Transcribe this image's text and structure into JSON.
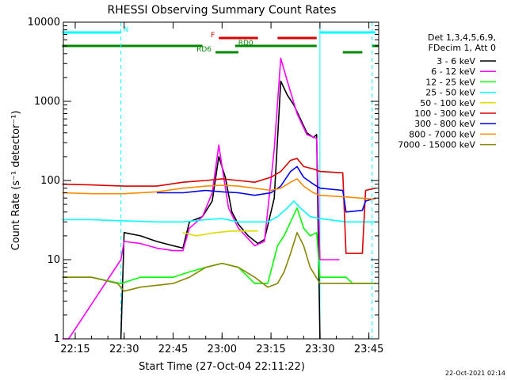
{
  "title": "RHESSI Observing Summary Count Rates",
  "xlabel": "Start Time (27-Oct-04 22:11:22)",
  "ylabel": "Count Rate (s⁻¹ detector⁻¹)",
  "footer_date": "22-Oct-2021 02:14",
  "legend": {
    "header_line1": "Det 1,3,4,5,6,9,",
    "header_line2": "FDecim 1, Att 0",
    "entries": [
      {
        "label": "3 - 6 keV",
        "color": "#000000"
      },
      {
        "label": "6 - 12 keV",
        "color": "#ff00ff"
      },
      {
        "label": "12 - 25 keV",
        "color": "#00ff00"
      },
      {
        "label": "25 - 50 keV",
        "color": "#00ffff"
      },
      {
        "label": "50 - 100 keV",
        "color": "#dddd00"
      },
      {
        "label": "100 - 300 keV",
        "color": "#dd0000"
      },
      {
        "label": "300 - 800 keV",
        "color": "#0000ee"
      },
      {
        "label": "800 - 7000 keV",
        "color": "#ff8800"
      },
      {
        "label": "7000 - 15000 keV",
        "color": "#888800"
      }
    ]
  },
  "flags": [
    {
      "label": "N",
      "color": "#00ffff"
    },
    {
      "label": "F",
      "color": "#dd0000"
    },
    {
      "label": "RD0",
      "color": "#008800"
    },
    {
      "label": "RD6",
      "color": "#008800"
    }
  ],
  "chart_data": {
    "type": "line",
    "yscale": "log",
    "ylim": [
      1,
      10000
    ],
    "xlim": [
      "22:11:22",
      "23:48:00"
    ],
    "x_tick_labels": [
      "22:15",
      "22:30",
      "22:45",
      "23:00",
      "23:15",
      "23:30",
      "23:45"
    ],
    "y_tick_labels": [
      "1",
      "10",
      "100",
      "1000",
      "10000"
    ],
    "flag_bars": [
      {
        "name": "N",
        "color": "#00ffff",
        "segments": [
          [
            "22:11",
            "22:29"
          ],
          [
            "23:30",
            "23:47"
          ]
        ]
      },
      {
        "name": "F",
        "color": "#dd0000",
        "segments": [
          [
            "22:59",
            "23:11"
          ],
          [
            "23:17",
            "23:29"
          ]
        ]
      },
      {
        "name": "RD0",
        "color": "#008800",
        "segments": [
          [
            "22:11",
            "22:54"
          ],
          [
            "23:04",
            "23:29"
          ],
          [
            "23:46",
            "23:48"
          ]
        ]
      },
      {
        "name": "RD6",
        "color": "#008800",
        "segments": [
          [
            "22:58",
            "23:05"
          ],
          [
            "23:37",
            "23:43"
          ]
        ]
      }
    ],
    "vertical_markers": [
      {
        "time": "22:29",
        "color": "#00ffff",
        "style": "dashed"
      },
      {
        "time": "23:30",
        "color": "#00ffff",
        "style": "solid"
      },
      {
        "time": "23:46",
        "color": "#00ffff",
        "style": "dashed"
      }
    ],
    "series": [
      {
        "name": "3 - 6 keV",
        "color": "#000000",
        "points": [
          [
            "22:29",
            1
          ],
          [
            "22:30",
            22
          ],
          [
            "22:35",
            20
          ],
          [
            "22:40",
            17
          ],
          [
            "22:45",
            15
          ],
          [
            "22:48",
            14
          ],
          [
            "22:50",
            30
          ],
          [
            "22:54",
            35
          ],
          [
            "22:57",
            55
          ],
          [
            "22:59",
            200
          ],
          [
            "23:01",
            110
          ],
          [
            "23:03",
            40
          ],
          [
            "23:05",
            28
          ],
          [
            "23:08",
            20
          ],
          [
            "23:11",
            16
          ],
          [
            "23:13",
            18
          ],
          [
            "23:16",
            60
          ],
          [
            "23:18",
            1800
          ],
          [
            "23:20",
            1200
          ],
          [
            "23:22",
            900
          ],
          [
            "23:24",
            600
          ],
          [
            "23:26",
            400
          ],
          [
            "23:28",
            350
          ],
          [
            "23:29",
            380
          ],
          [
            "23:30",
            1
          ]
        ]
      },
      {
        "name": "6 - 12 keV",
        "color": "#ff00ff",
        "points": [
          [
            "22:11",
            1
          ],
          [
            "22:13",
            1
          ],
          [
            "22:29",
            10
          ],
          [
            "22:30",
            17
          ],
          [
            "22:35",
            16
          ],
          [
            "22:40",
            14
          ],
          [
            "22:45",
            13
          ],
          [
            "22:48",
            13
          ],
          [
            "22:50",
            25
          ],
          [
            "22:54",
            35
          ],
          [
            "22:57",
            70
          ],
          [
            "22:59",
            280
          ],
          [
            "23:00",
            150
          ],
          [
            "23:02",
            45
          ],
          [
            "23:05",
            25
          ],
          [
            "23:10",
            15
          ],
          [
            "23:13",
            17
          ],
          [
            "23:16",
            250
          ],
          [
            "23:18",
            3500
          ],
          [
            "23:20",
            1800
          ],
          [
            "23:23",
            700
          ],
          [
            "23:26",
            380
          ],
          [
            "23:29",
            340
          ],
          [
            "23:30",
            10
          ],
          [
            "23:36",
            10
          ]
        ]
      },
      {
        "name": "12 - 25 keV",
        "color": "#00ff00",
        "points": [
          [
            "22:11",
            6
          ],
          [
            "22:20",
            6
          ],
          [
            "22:29",
            5
          ],
          [
            "22:35",
            6
          ],
          [
            "22:45",
            6
          ],
          [
            "22:50",
            7
          ],
          [
            "22:55",
            8
          ],
          [
            "23:00",
            9
          ],
          [
            "23:05",
            8
          ],
          [
            "23:10",
            5
          ],
          [
            "23:14",
            5
          ],
          [
            "23:17",
            15
          ],
          [
            "23:19",
            20
          ],
          [
            "23:21",
            30
          ],
          [
            "23:23",
            45
          ],
          [
            "23:25",
            25
          ],
          [
            "23:27",
            20
          ],
          [
            "23:29",
            22
          ],
          [
            "23:30",
            6
          ],
          [
            "23:38",
            6
          ],
          [
            "23:40",
            5
          ],
          [
            "23:47",
            5
          ]
        ]
      },
      {
        "name": "25 - 50 keV",
        "color": "#00ffff",
        "points": [
          [
            "22:11",
            32
          ],
          [
            "22:20",
            32
          ],
          [
            "22:30",
            31
          ],
          [
            "22:40",
            30
          ],
          [
            "22:48",
            30
          ],
          [
            "22:55",
            32
          ],
          [
            "23:00",
            33
          ],
          [
            "23:05",
            30
          ],
          [
            "23:10",
            30
          ],
          [
            "23:14",
            30
          ],
          [
            "23:17",
            35
          ],
          [
            "23:20",
            45
          ],
          [
            "23:22",
            55
          ],
          [
            "23:24",
            45
          ],
          [
            "23:27",
            35
          ],
          [
            "23:30",
            33
          ],
          [
            "23:38",
            30
          ],
          [
            "23:47",
            30
          ]
        ]
      },
      {
        "name": "50 - 100 keV",
        "color": "#dddd00",
        "points": [
          [
            "22:48",
            22
          ],
          [
            "22:52",
            20
          ],
          [
            "22:58",
            22
          ],
          [
            "23:03",
            23
          ],
          [
            "23:11",
            23
          ]
        ]
      },
      {
        "name": "100 - 300 keV",
        "color": "#dd0000",
        "points": [
          [
            "22:11",
            90
          ],
          [
            "22:20",
            88
          ],
          [
            "22:30",
            85
          ],
          [
            "22:40",
            85
          ],
          [
            "22:48",
            95
          ],
          [
            "22:55",
            100
          ],
          [
            "23:00",
            105
          ],
          [
            "23:05",
            100
          ],
          [
            "23:10",
            95
          ],
          [
            "23:15",
            110
          ],
          [
            "23:18",
            130
          ],
          [
            "23:21",
            180
          ],
          [
            "23:23",
            190
          ],
          [
            "23:25",
            150
          ],
          [
            "23:28",
            140
          ],
          [
            "23:30",
            130
          ],
          [
            "23:37",
            125
          ],
          [
            "23:38",
            12
          ],
          [
            "23:43",
            12
          ],
          [
            "23:44",
            75
          ],
          [
            "23:47",
            80
          ]
        ]
      },
      {
        "name": "300 - 800 keV",
        "color": "#0000ee",
        "points": [
          [
            "22:40",
            70
          ],
          [
            "22:48",
            70
          ],
          [
            "22:55",
            75
          ],
          [
            "23:00",
            72
          ],
          [
            "23:05",
            70
          ],
          [
            "23:10",
            65
          ],
          [
            "23:15",
            70
          ],
          [
            "23:18",
            85
          ],
          [
            "23:21",
            130
          ],
          [
            "23:23",
            150
          ],
          [
            "23:25",
            110
          ],
          [
            "23:28",
            90
          ],
          [
            "23:30",
            80
          ],
          [
            "23:37",
            75
          ],
          [
            "23:38",
            40
          ],
          [
            "23:43",
            42
          ],
          [
            "23:44",
            55
          ],
          [
            "23:47",
            60
          ]
        ]
      },
      {
        "name": "800 - 7000 keV",
        "color": "#ff8800",
        "points": [
          [
            "22:11",
            70
          ],
          [
            "22:20",
            68
          ],
          [
            "22:30",
            68
          ],
          [
            "22:40",
            72
          ],
          [
            "22:48",
            80
          ],
          [
            "22:55",
            85
          ],
          [
            "23:00",
            87
          ],
          [
            "23:05",
            85
          ],
          [
            "23:10",
            80
          ],
          [
            "23:15",
            75
          ],
          [
            "23:18",
            80
          ],
          [
            "23:21",
            95
          ],
          [
            "23:23",
            105
          ],
          [
            "23:25",
            85
          ],
          [
            "23:28",
            70
          ],
          [
            "23:30",
            65
          ],
          [
            "23:38",
            62
          ],
          [
            "23:47",
            58
          ]
        ]
      },
      {
        "name": "7000 - 15000 keV",
        "color": "#888800",
        "points": [
          [
            "22:11",
            6
          ],
          [
            "22:20",
            6
          ],
          [
            "22:28",
            5
          ],
          [
            "22:30",
            4
          ],
          [
            "22:35",
            4.5
          ],
          [
            "22:45",
            5
          ],
          [
            "22:50",
            6
          ],
          [
            "22:55",
            8
          ],
          [
            "23:00",
            9
          ],
          [
            "23:05",
            8
          ],
          [
            "23:10",
            6
          ],
          [
            "23:14",
            4.5
          ],
          [
            "23:17",
            5
          ],
          [
            "23:19",
            7
          ],
          [
            "23:21",
            12
          ],
          [
            "23:23",
            22
          ],
          [
            "23:25",
            15
          ],
          [
            "23:27",
            8
          ],
          [
            "23:30",
            5
          ],
          [
            "23:40",
            5
          ],
          [
            "23:47",
            5
          ]
        ]
      }
    ]
  }
}
